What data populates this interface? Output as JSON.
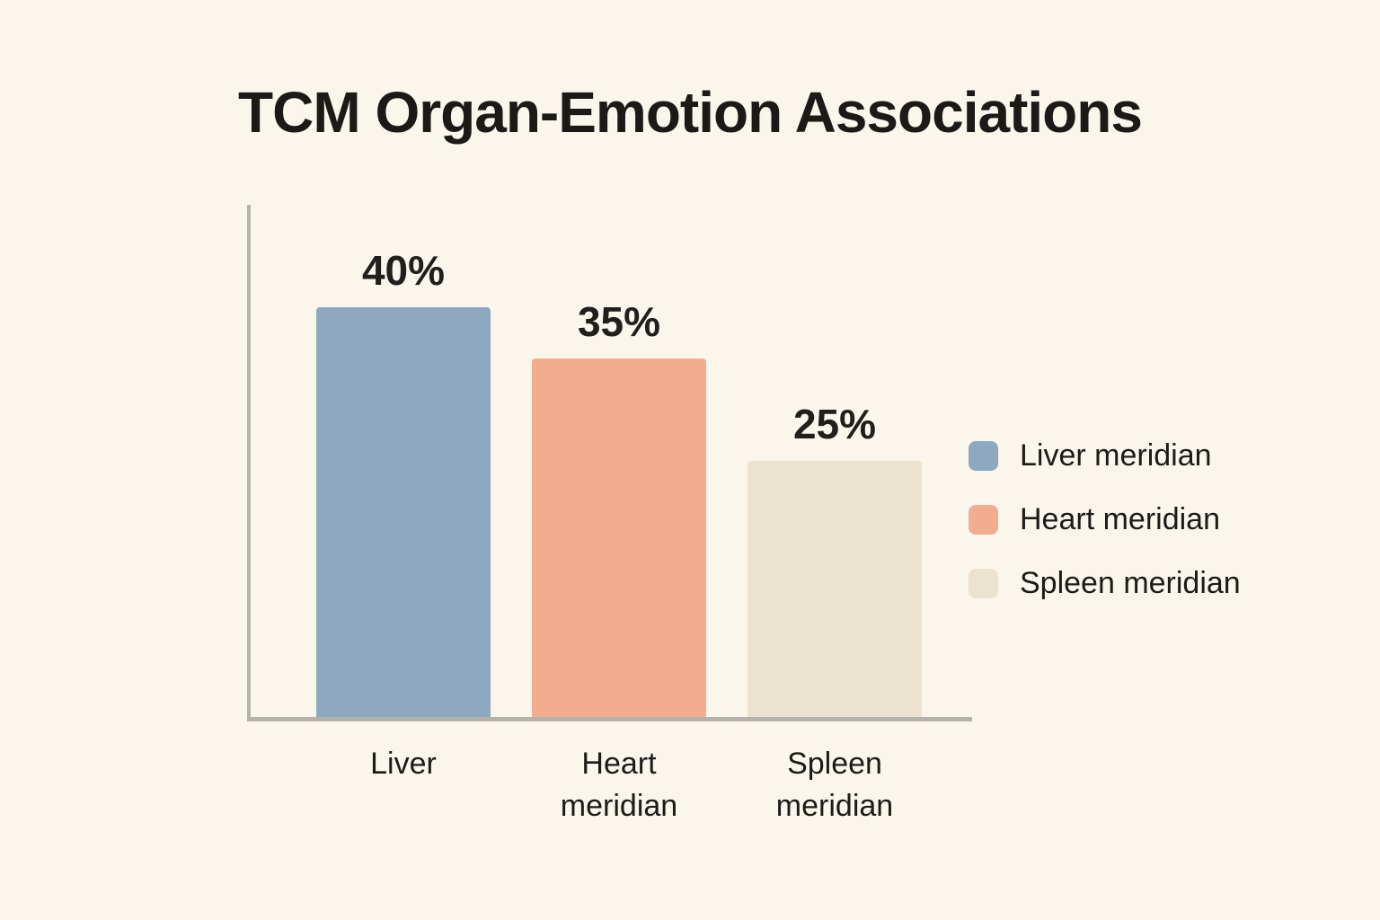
{
  "page": {
    "background": "#FAF6EC",
    "text_color": "#1B1A17",
    "axis_color": "#B5B2AB"
  },
  "chart_data": {
    "type": "bar",
    "title": "TCM Organ-Emotion Associations",
    "categories": [
      "Liver",
      "Heart meridian",
      "Spleen meridian"
    ],
    "values": [
      40,
      35,
      25
    ],
    "value_labels": [
      "40%",
      "35%",
      "25%"
    ],
    "bar_colors": [
      "#8EA9BF",
      "#F2AD8F",
      "#ECE2D0"
    ],
    "xlabel": "",
    "ylabel": "",
    "ylim": [
      0,
      50
    ],
    "grid": false,
    "legend": {
      "position": "right",
      "entries": [
        {
          "label": "Liver meridian",
          "color": "#8EA9BF"
        },
        {
          "label": "Heart meridian",
          "color": "#F2AD8F"
        },
        {
          "label": "Spleen meridian",
          "color": "#ECE2D0"
        }
      ]
    }
  }
}
